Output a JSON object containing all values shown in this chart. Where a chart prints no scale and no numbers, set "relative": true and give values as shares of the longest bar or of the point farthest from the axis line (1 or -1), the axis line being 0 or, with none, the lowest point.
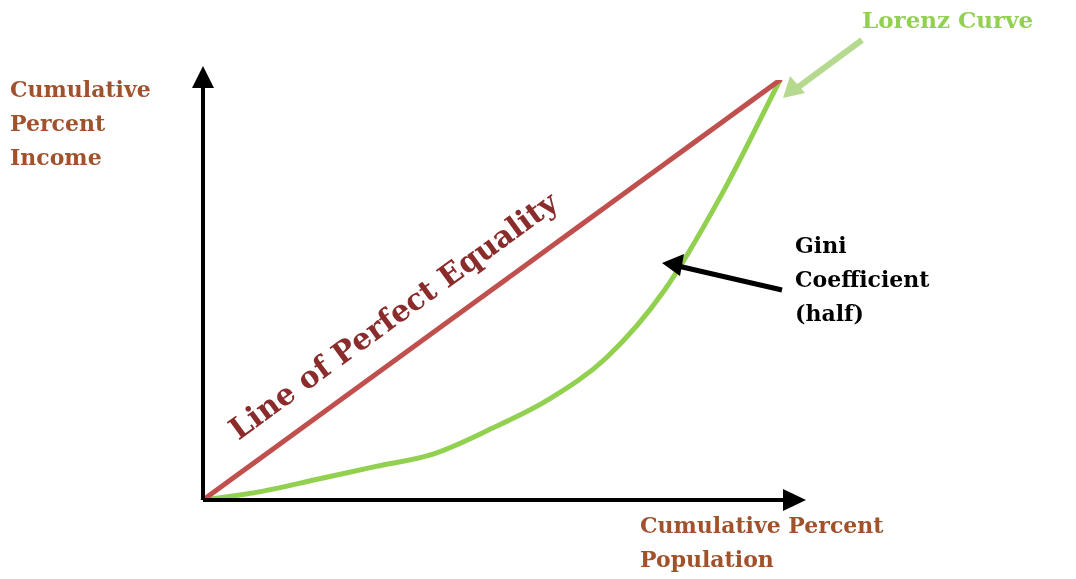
{
  "chart_data": {
    "type": "line",
    "relative": true,
    "xlabel": "Cumulative Percent Population",
    "ylabel": "Cumulative Percent Income",
    "annotations": [
      "Gini Coefficient (half)"
    ],
    "categories": [
      null,
      null,
      null,
      null,
      null,
      null,
      null,
      null,
      null,
      null,
      null
    ],
    "series": [
      {
        "name": "Line of Perfect Equality",
        "color": "#c0504d",
        "values": [
          0,
          0.1,
          0.2,
          0.3,
          0.4,
          0.5,
          0.6,
          0.7,
          0.8,
          0.9,
          1
        ]
      },
      {
        "name": "Lorenz Curve",
        "color": "#92d050",
        "values": [
          0,
          0.02,
          0.05,
          0.08,
          0.11,
          0.17,
          0.24,
          0.34,
          0.5,
          0.73,
          1
        ]
      }
    ],
    "marker": "none",
    "legend": false
  }
}
